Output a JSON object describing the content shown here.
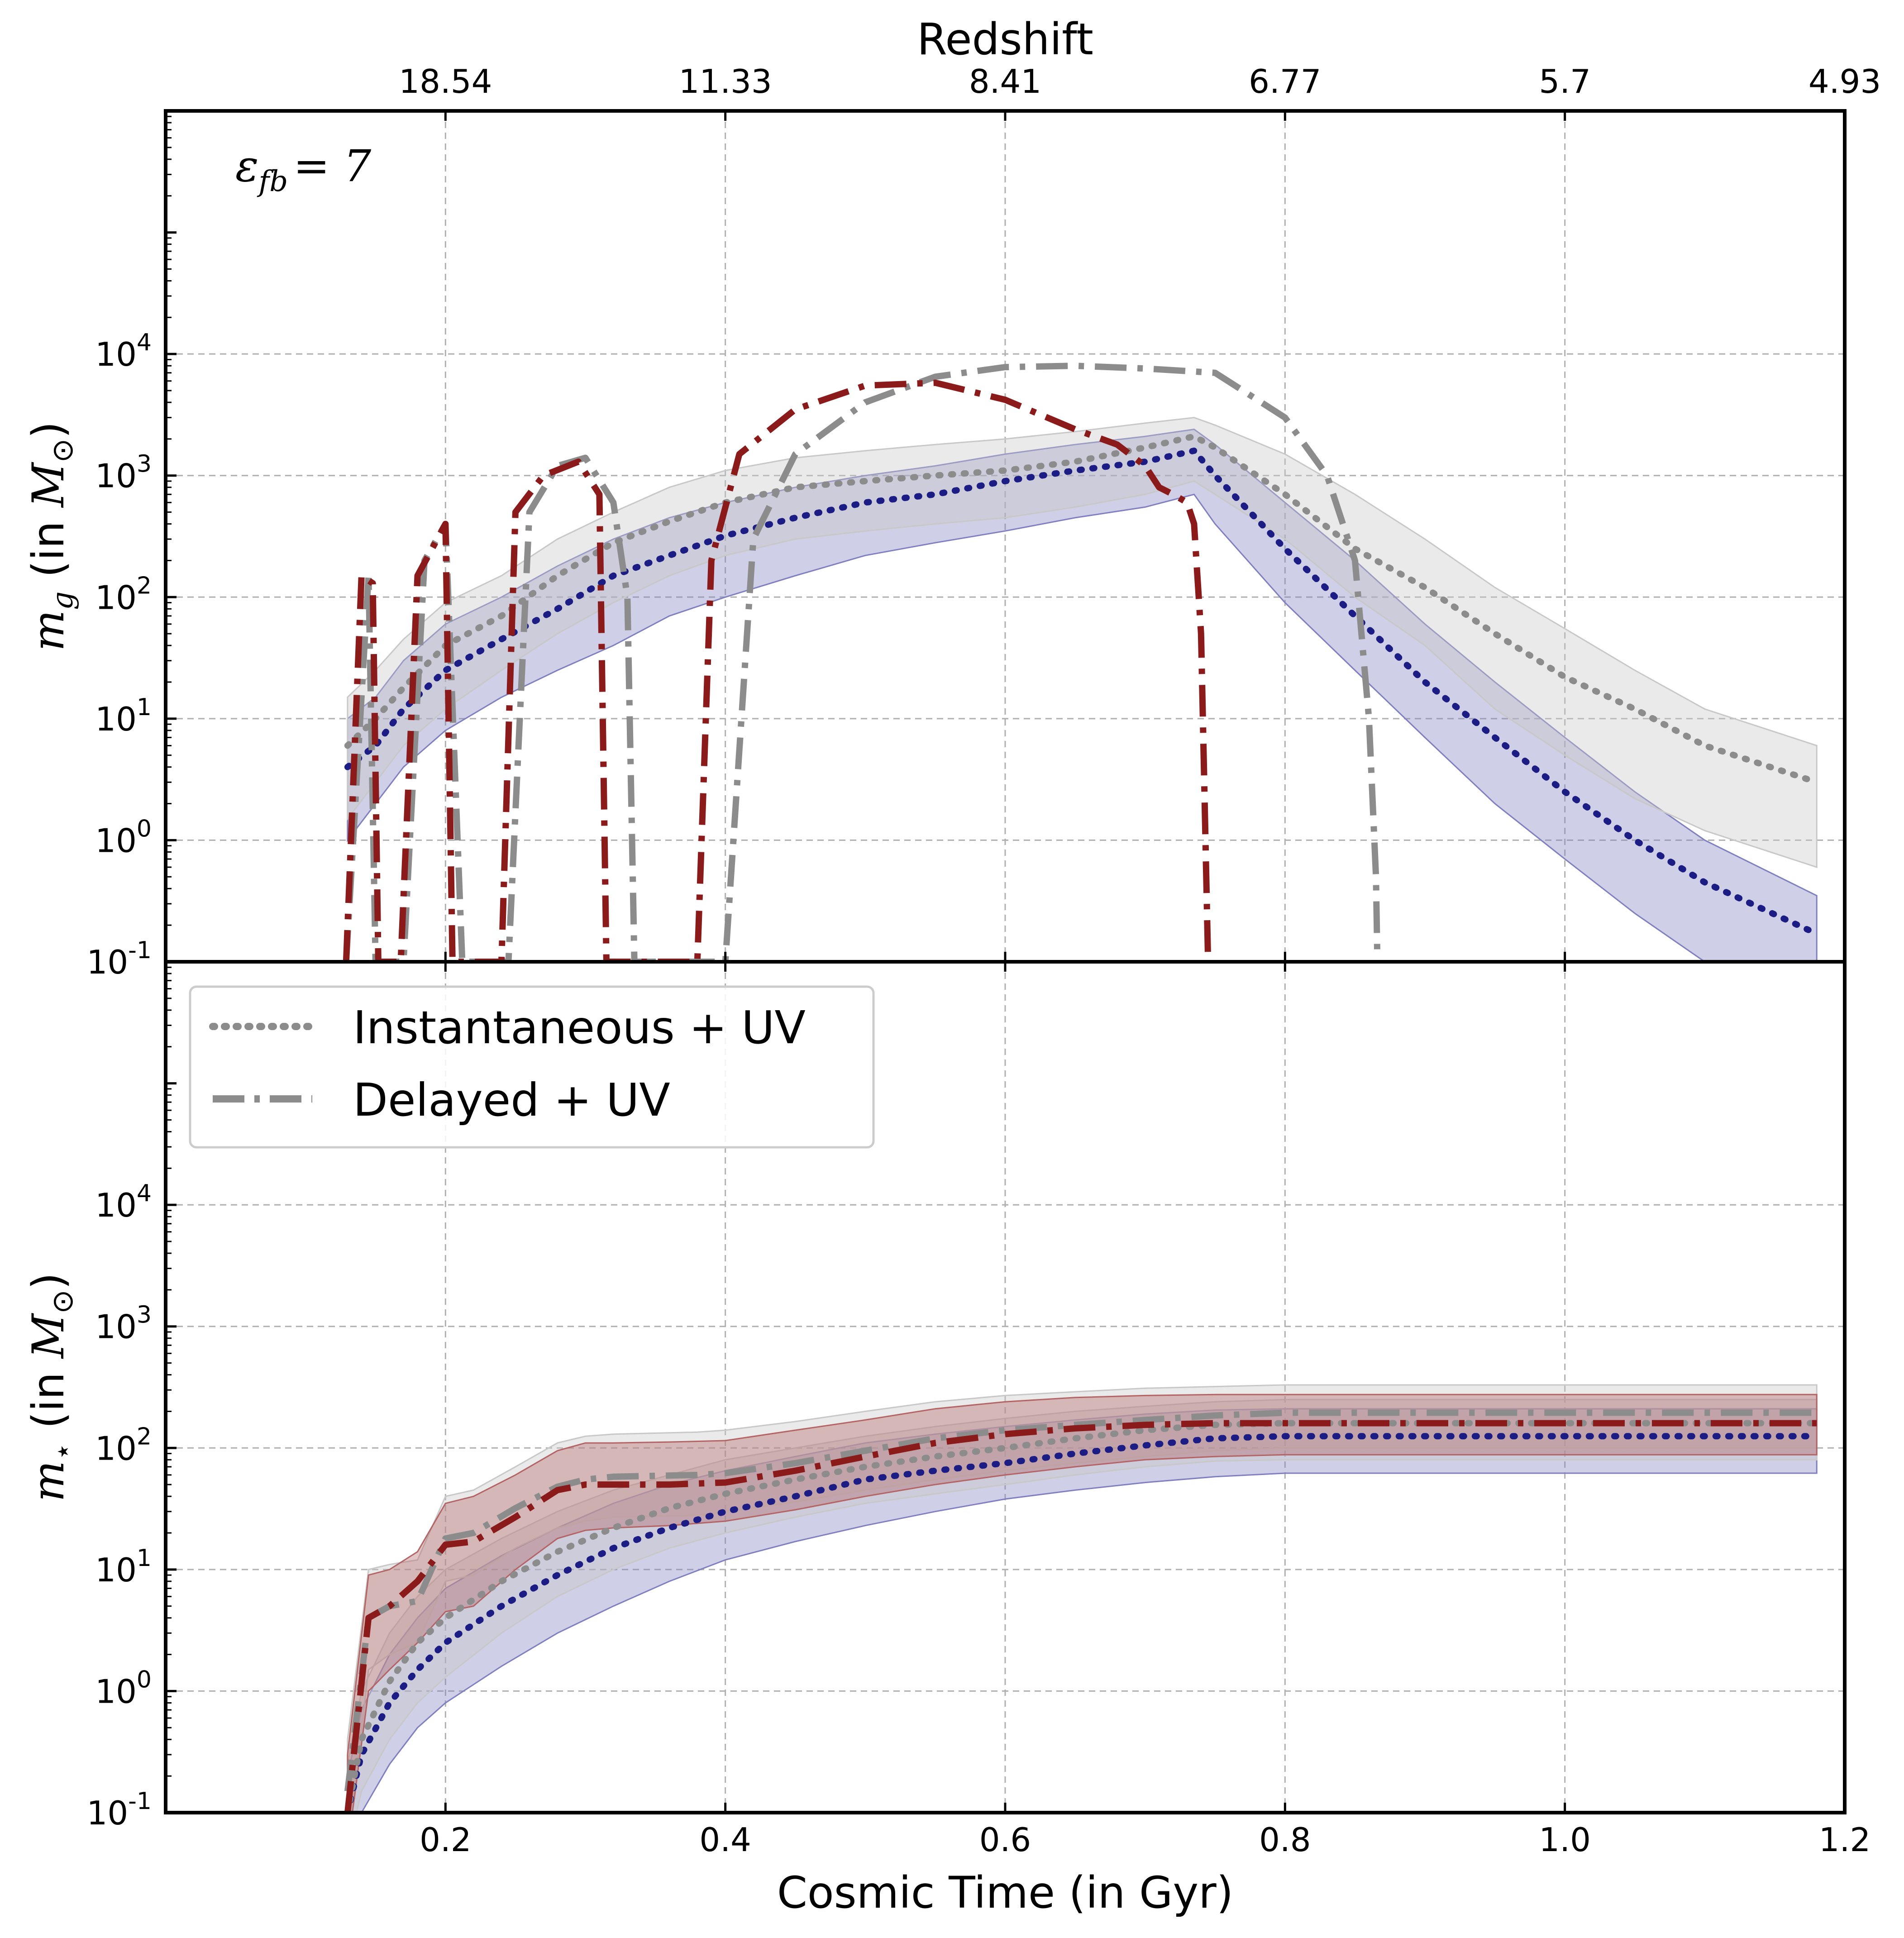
{
  "chart_data": {
    "type": "line",
    "top_axis_label": "Redshift",
    "top_ticks": [
      {
        "t": 0.2,
        "label": "18.54"
      },
      {
        "t": 0.4,
        "label": "11.33"
      },
      {
        "t": 0.6,
        "label": "8.41"
      },
      {
        "t": 0.8,
        "label": "6.77"
      },
      {
        "t": 1.0,
        "label": "5.7"
      },
      {
        "t": 1.2,
        "label": "4.93"
      }
    ],
    "xlabel": "Cosmic Time (in Gyr)",
    "x_ticks": [
      0.2,
      0.4,
      0.6,
      0.8,
      1.0,
      1.2
    ],
    "x_tick_labels": [
      "0.2",
      "0.4",
      "0.6",
      "0.8",
      "1.0",
      "1.2"
    ],
    "xlim": [
      0.0,
      1.2
    ],
    "y_scale": "log",
    "ylim": [
      0.1,
      1000000
    ],
    "y_ticks": [
      0.1,
      1,
      10,
      100,
      1000,
      10000
    ],
    "y_tick_base": "10",
    "y_tick_exponents": [
      "-1",
      "0",
      "1",
      "2",
      "3",
      "4"
    ],
    "grid": true,
    "annotation": {
      "text_main": "ε",
      "text_sub": "fb",
      "text_rest": "= 7"
    },
    "colors": {
      "gray_line": "#8c8c8c",
      "gray_band": "#c8c8c8",
      "red_line": "#8b1a1a",
      "red_band": "#b46464",
      "blue_line": "#1c1c85",
      "blue_band": "#8080c0"
    },
    "legend": {
      "placement": "upper-left (lower panel)",
      "entries": [
        {
          "label": "Instantaneous + UV",
          "style": "dotted"
        },
        {
          "label": "Delayed + UV",
          "style": "dashdot"
        }
      ]
    },
    "panels": [
      {
        "name": "gas-mass",
        "ylabel_math": "m",
        "ylabel_sub": "g",
        "ylabel_rest": " (in ",
        "ylabel_unit": "M",
        "ylabel_unit_sub": "⊙",
        "ylabel_close": ")",
        "series": [
          {
            "color": "blue",
            "style": "dotted",
            "x": [
              0.13,
              0.15,
              0.17,
              0.2,
              0.24,
              0.28,
              0.32,
              0.36,
              0.4,
              0.45,
              0.5,
              0.55,
              0.6,
              0.65,
              0.7,
              0.735,
              0.75,
              0.8,
              0.85,
              0.9,
              0.95,
              1.0,
              1.05,
              1.1,
              1.18
            ],
            "y": [
              4,
              6,
              12,
              25,
              45,
              80,
              150,
              220,
              320,
              450,
              600,
              700,
              900,
              1100,
              1300,
              1600,
              1000,
              250,
              70,
              20,
              7,
              2.5,
              1,
              0.45,
              0.17
            ],
            "band_lo": [
              1,
              2,
              4,
              8,
              15,
              25,
              40,
              70,
              100,
              150,
              220,
              280,
              350,
              450,
              550,
              700,
              400,
              90,
              25,
              7,
              2,
              0.7,
              0.25,
              0.1,
              0.05
            ],
            "band_hi": [
              10,
              15,
              30,
              60,
              100,
              180,
              300,
              450,
              600,
              800,
              1000,
              1200,
              1500,
              1800,
              2100,
              2400,
              1800,
              600,
              200,
              60,
              20,
              7,
              2.5,
              1,
              0.35
            ]
          },
          {
            "color": "gray",
            "style": "dotted",
            "x": [
              0.13,
              0.15,
              0.17,
              0.2,
              0.24,
              0.28,
              0.32,
              0.36,
              0.4,
              0.45,
              0.5,
              0.55,
              0.6,
              0.65,
              0.7,
              0.735,
              0.75,
              0.8,
              0.85,
              0.9,
              0.95,
              1.0,
              1.05,
              1.1,
              1.18
            ],
            "y": [
              6,
              10,
              18,
              40,
              70,
              150,
              280,
              420,
              600,
              800,
              900,
              1000,
              1100,
              1300,
              1700,
              2100,
              1700,
              700,
              250,
              120,
              50,
              22,
              12,
              6,
              3
            ],
            "band_lo": [
              1.5,
              3,
              6,
              12,
              25,
              50,
              90,
              150,
              220,
              300,
              350,
              400,
              450,
              550,
              700,
              900,
              700,
              300,
              100,
              40,
              12,
              5,
              2.2,
              1.2,
              0.6
            ],
            "band_hi": [
              15,
              25,
              45,
              90,
              150,
              300,
              500,
              800,
              1100,
              1400,
              1600,
              1800,
              2000,
              2300,
              2700,
              3000,
              2600,
              1500,
              700,
              300,
              120,
              55,
              25,
              12,
              6
            ]
          },
          {
            "color": "gray",
            "style": "dashdot",
            "x": [
              0.129,
              0.145,
              0.15,
              0.158,
              0.17,
              0.185,
              0.2,
              0.212,
              0.215,
              0.24,
              0.245,
              0.26,
              0.28,
              0.3,
              0.32,
              0.33,
              0.335,
              0.39,
              0.4,
              0.42,
              0.45,
              0.5,
              0.55,
              0.6,
              0.65,
              0.7,
              0.75,
              0.8,
              0.83,
              0.85,
              0.86,
              0.865,
              0.866
            ],
            "y": [
              0.1,
              150,
              0.1,
              0.1,
              0.1,
              200,
              400,
              0.1,
              0.1,
              0.1,
              0.1,
              500,
              1200,
              1400,
              600,
              100,
              0.1,
              0.1,
              0.1,
              300,
              1500,
              4000,
              6500,
              7800,
              8000,
              7600,
              7000,
              3000,
              1000,
              200,
              10,
              0.5,
              0.1
            ]
          },
          {
            "color": "red",
            "style": "dashdot",
            "x": [
              0.129,
              0.14,
              0.148,
              0.152,
              0.168,
              0.18,
              0.2,
              0.205,
              0.24,
              0.25,
              0.27,
              0.295,
              0.31,
              0.315,
              0.38,
              0.39,
              0.41,
              0.45,
              0.5,
              0.55,
              0.6,
              0.65,
              0.68,
              0.7,
              0.71,
              0.72,
              0.73,
              0.735,
              0.74,
              0.745
            ],
            "y": [
              0.1,
              150,
              130,
              0.1,
              0.1,
              150,
              400,
              0.1,
              0.1,
              500,
              1000,
              1300,
              700,
              0.1,
              0.1,
              200,
              1500,
              3500,
              5500,
              5800,
              4200,
              2400,
              1800,
              1200,
              800,
              700,
              600,
              400,
              50,
              0.1
            ]
          }
        ]
      },
      {
        "name": "stellar-mass",
        "ylabel_math": "m",
        "ylabel_sub": "⋆",
        "ylabel_rest": " (in ",
        "ylabel_unit": "M",
        "ylabel_unit_sub": "⊙",
        "ylabel_close": ")",
        "series": [
          {
            "color": "blue",
            "style": "dotted",
            "x": [
              0.13,
              0.14,
              0.16,
              0.18,
              0.2,
              0.24,
              0.28,
              0.32,
              0.36,
              0.4,
              0.45,
              0.5,
              0.55,
              0.6,
              0.65,
              0.7,
              0.75,
              0.8,
              1.18
            ],
            "y": [
              0.1,
              0.3,
              0.8,
              1.5,
              2.5,
              5,
              9,
              15,
              22,
              30,
              40,
              55,
              65,
              75,
              90,
              105,
              120,
              125,
              125
            ],
            "band_lo": [
              0.05,
              0.1,
              0.25,
              0.5,
              0.8,
              1.6,
              3,
              5,
              8,
              12,
              17,
              23,
              30,
              38,
              45,
              52,
              58,
              62,
              62
            ],
            "band_hi": [
              0.2,
              0.7,
              2,
              4,
              7,
              13,
              22,
              35,
              50,
              65,
              85,
              110,
              130,
              150,
              170,
              190,
              205,
              210,
              210
            ]
          },
          {
            "color": "gray",
            "style": "dotted",
            "x": [
              0.13,
              0.14,
              0.16,
              0.18,
              0.2,
              0.24,
              0.28,
              0.32,
              0.36,
              0.4,
              0.45,
              0.5,
              0.55,
              0.6,
              0.65,
              0.7,
              0.75,
              0.8,
              1.18
            ],
            "y": [
              0.1,
              0.4,
              1.2,
              2.5,
              4,
              8,
              14,
              22,
              32,
              42,
              55,
              70,
              85,
              100,
              120,
              140,
              155,
              160,
              160
            ],
            "band_lo": [
              0.05,
              0.15,
              0.4,
              0.8,
              1.3,
              3,
              6,
              10,
              15,
              20,
              27,
              35,
              42,
              50,
              60,
              70,
              78,
              80,
              80
            ],
            "band_hi": [
              0.25,
              1,
              3,
              6,
              10,
              18,
              30,
              45,
              60,
              80,
              100,
              125,
              150,
              175,
              200,
              220,
              240,
              250,
              250
            ]
          },
          {
            "color": "gray",
            "style": "dashdot",
            "x": [
              0.13,
              0.145,
              0.16,
              0.18,
              0.2,
              0.22,
              0.25,
              0.28,
              0.3,
              0.32,
              0.38,
              0.4,
              0.45,
              0.5,
              0.55,
              0.6,
              0.65,
              0.7,
              0.75,
              0.8,
              1.18
            ],
            "y": [
              0.15,
              4,
              5,
              5.5,
              18,
              20,
              32,
              48,
              55,
              58,
              60,
              62,
              75,
              95,
              120,
              140,
              155,
              170,
              185,
              195,
              195
            ],
            "band_lo": [
              0.05,
              1.5,
              2,
              2.5,
              8,
              9,
              15,
              22,
              25,
              27,
              28,
              30,
              36,
              45,
              55,
              65,
              75,
              85,
              95,
              100,
              100
            ],
            "band_hi": [
              0.4,
              10,
              11,
              12,
              40,
              45,
              70,
              110,
              125,
              130,
              135,
              140,
              165,
              200,
              240,
              270,
              290,
              310,
              320,
              330,
              330
            ]
          },
          {
            "color": "red",
            "style": "dashdot",
            "x": [
              0.13,
              0.145,
              0.16,
              0.18,
              0.2,
              0.22,
              0.25,
              0.28,
              0.3,
              0.32,
              0.36,
              0.4,
              0.45,
              0.5,
              0.55,
              0.6,
              0.65,
              0.7,
              0.75,
              0.8,
              1.18
            ],
            "y": [
              0.1,
              4,
              5,
              8,
              16,
              17,
              27,
              45,
              50,
              50,
              50,
              52,
              65,
              85,
              110,
              130,
              145,
              155,
              160,
              160,
              160
            ],
            "band_lo": [
              0.05,
              1,
              1.5,
              2.5,
              4.5,
              5,
              10,
              18,
              21,
              22,
              23,
              25,
              31,
              40,
              50,
              60,
              70,
              80,
              85,
              88,
              88
            ],
            "band_hi": [
              0.3,
              9,
              10,
              14,
              35,
              40,
              60,
              95,
              110,
              110,
              112,
              115,
              140,
              170,
              210,
              240,
              260,
              270,
              275,
              275,
              275
            ]
          }
        ]
      }
    ]
  }
}
